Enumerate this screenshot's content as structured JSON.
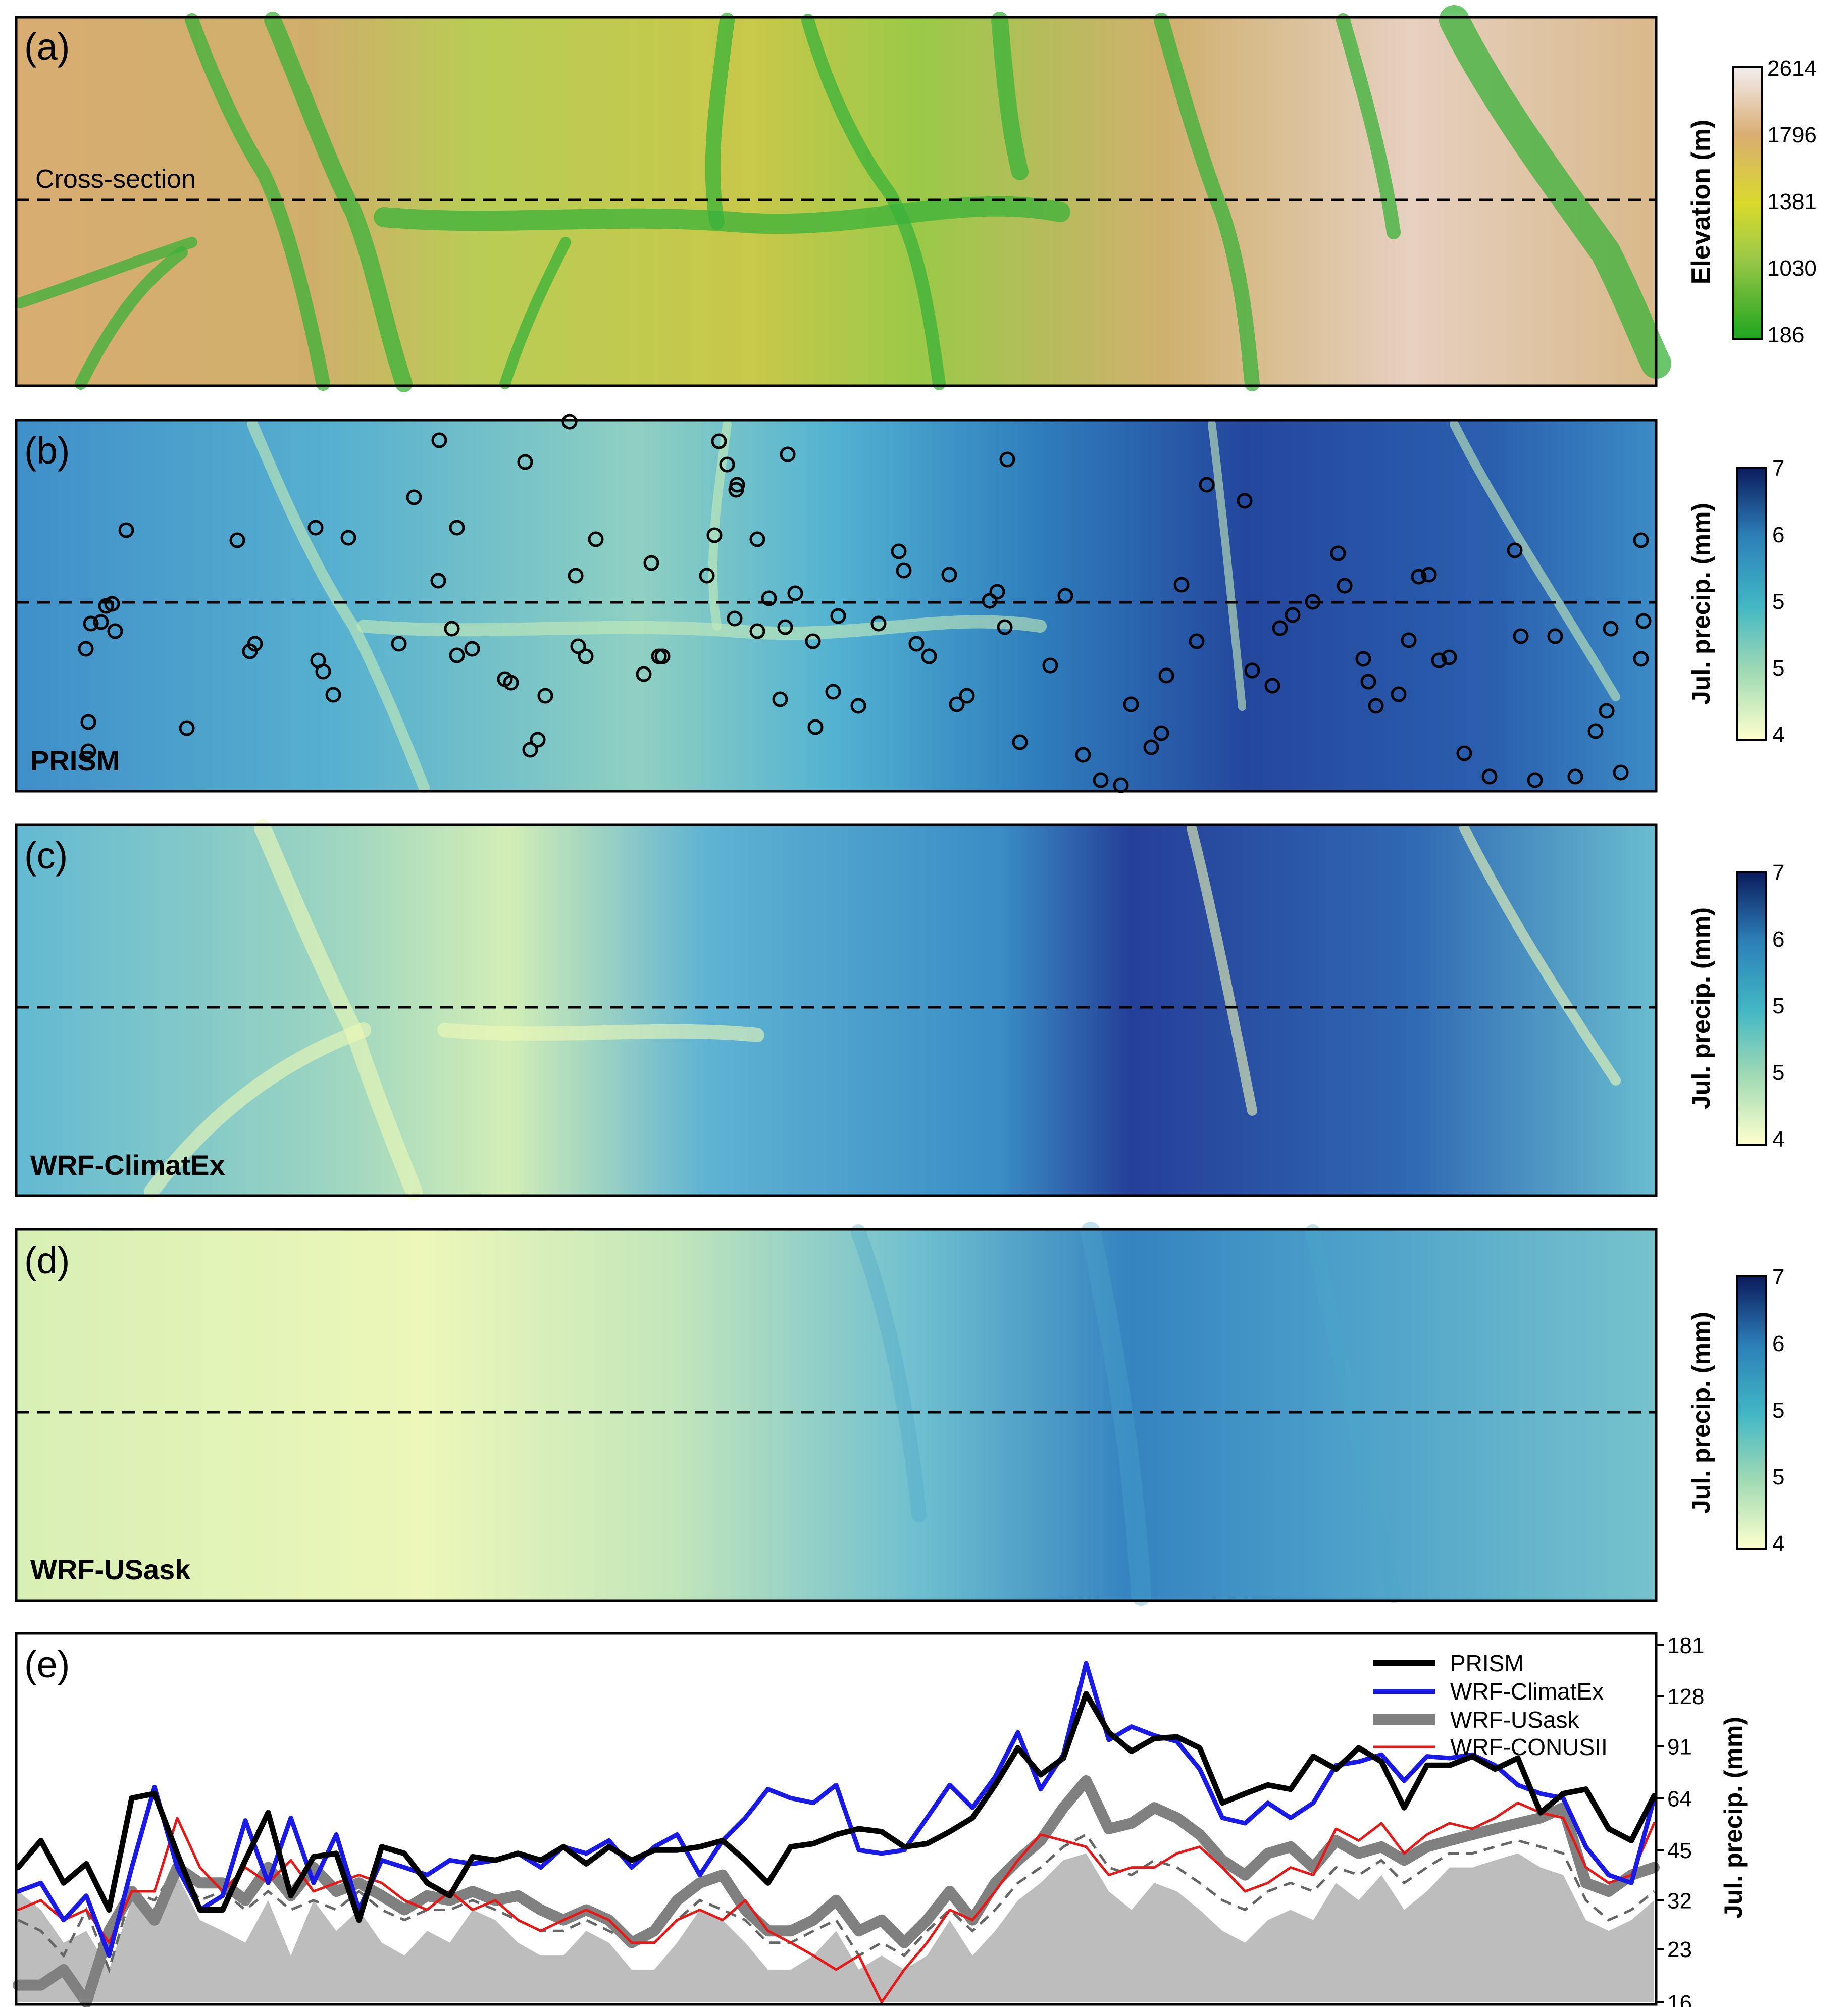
{
  "colors": {
    "terrain": [
      "#1fa51f",
      "#9bc948",
      "#dada2c",
      "#d9ad72",
      "#f4eef0"
    ],
    "precip": [
      "#ffffcc",
      "#a1dab4",
      "#41b6c4",
      "#2c7fb8",
      "#253494",
      "#0b1b5c"
    ],
    "prism_line": "#000000",
    "climatex_line": "#1a1ae6",
    "usask_line": "#808080",
    "conus_line": "#e61919",
    "elevation_fill": "#bdbdbd"
  },
  "panels": [
    {
      "id": "a",
      "label": "(a)",
      "name": "",
      "annotation": "Cross-section"
    },
    {
      "id": "b",
      "label": "(b)",
      "name": "PRISM"
    },
    {
      "id": "c",
      "label": "(c)",
      "name": "WRF-ClimatEx"
    },
    {
      "id": "d",
      "label": "(d)",
      "name": "WRF-USask"
    },
    {
      "id": "e",
      "label": "(e)",
      "name": ""
    }
  ],
  "colorbars": [
    {
      "title": "Elevation (m)",
      "ticks": [
        "2614",
        "1796",
        "1381",
        "1030",
        "186"
      ]
    },
    {
      "title": "Jul. precip. (mm)",
      "ticks": [
        "7",
        "6",
        "5",
        "5",
        "4"
      ]
    },
    {
      "title": "Jul. precip. (mm)",
      "ticks": [
        "7",
        "6",
        "5",
        "5",
        "4"
      ]
    },
    {
      "title": "Jul. precip. (mm)",
      "ticks": [
        "7",
        "6",
        "5",
        "5",
        "4"
      ]
    }
  ],
  "chart_data": {
    "type": "line",
    "ylabel": "Jul. precip. (mm)",
    "ylim": [
      16,
      181
    ],
    "y_scale": "log",
    "y_ticks": [
      181,
      128,
      91,
      64,
      45,
      32,
      23,
      16
    ],
    "legend_position": "top-right",
    "legend": [
      "PRISM",
      "WRF-ClimatEx",
      "WRF-USask",
      "WRF-CONUSII"
    ],
    "series": [
      {
        "name": "PRISM",
        "values": [
          40,
          48,
          36,
          41,
          30,
          64,
          66,
          44,
          30,
          30,
          42,
          58,
          33,
          43,
          44,
          28,
          46,
          44,
          36,
          33,
          43,
          42,
          44,
          42,
          46,
          41,
          46,
          42,
          45,
          45,
          46,
          48,
          42,
          36,
          46,
          47,
          50,
          52,
          51,
          46,
          47,
          51,
          56,
          70,
          90,
          75,
          84,
          130,
          100,
          88,
          96,
          97,
          90,
          62,
          66,
          70,
          68,
          85,
          78,
          90,
          82,
          60,
          80,
          80,
          85,
          78,
          84,
          58,
          66,
          68,
          52,
          48,
          65
        ]
      },
      {
        "name": "WRF-ClimatEx",
        "values": [
          34,
          36,
          28,
          33,
          22,
          40,
          69,
          40,
          30,
          33,
          55,
          36,
          56,
          36,
          50,
          30,
          42,
          40,
          38,
          42,
          41,
          42,
          44,
          40,
          46,
          44,
          48,
          40,
          46,
          50,
          38,
          48,
          56,
          68,
          64,
          62,
          70,
          45,
          44,
          45,
          56,
          70,
          60,
          74,
          100,
          68,
          86,
          160,
          95,
          104,
          98,
          94,
          78,
          56,
          54,
          62,
          56,
          62,
          80,
          82,
          86,
          72,
          85,
          84,
          86,
          80,
          70,
          66,
          64,
          46,
          38,
          36,
          64
        ]
      },
      {
        "name": "WRF-USask",
        "values": [
          18,
          18,
          20,
          16,
          26,
          34,
          28,
          40,
          36,
          36,
          32,
          40,
          33,
          40,
          34,
          36,
          33,
          30,
          33,
          32,
          34,
          32,
          33,
          30,
          28,
          30,
          28,
          24,
          26,
          32,
          36,
          38,
          30,
          26,
          26,
          28,
          32,
          26,
          28,
          24,
          28,
          34,
          28,
          36,
          42,
          48,
          60,
          72,
          52,
          54,
          60,
          56,
          50,
          42,
          38,
          44,
          46,
          40,
          48,
          44,
          46,
          42,
          46,
          48,
          50,
          52,
          54,
          56,
          60,
          36,
          34,
          38,
          40
        ]
      },
      {
        "name": "WRF-CONUSII",
        "values": [
          30,
          32,
          28,
          30,
          24,
          34,
          34,
          56,
          40,
          34,
          40,
          36,
          42,
          34,
          36,
          38,
          36,
          32,
          30,
          34,
          30,
          32,
          28,
          26,
          28,
          30,
          28,
          24,
          24,
          28,
          30,
          28,
          32,
          26,
          24,
          22,
          20,
          22,
          16,
          20,
          24,
          30,
          28,
          34,
          42,
          50,
          48,
          46,
          38,
          40,
          40,
          44,
          46,
          40,
          34,
          36,
          40,
          38,
          52,
          48,
          54,
          44,
          50,
          54,
          52,
          56,
          62,
          58,
          56,
          40,
          36,
          38,
          54
        ]
      },
      {
        "name": "",
        "values": [
          28,
          26,
          22,
          30,
          20,
          34,
          32,
          40,
          32,
          34,
          30,
          34,
          30,
          32,
          30,
          34,
          30,
          28,
          30,
          30,
          32,
          30,
          28,
          26,
          26,
          28,
          26,
          24,
          24,
          28,
          32,
          30,
          28,
          24,
          24,
          26,
          28,
          22,
          24,
          22,
          26,
          30,
          26,
          30,
          36,
          40,
          46,
          50,
          40,
          38,
          42,
          40,
          36,
          32,
          30,
          34,
          36,
          34,
          40,
          38,
          42,
          36,
          40,
          44,
          44,
          46,
          48,
          46,
          44,
          32,
          28,
          30,
          34
        ]
      },
      {
        "name": "",
        "values": [
          34,
          30,
          24,
          26,
          20,
          32,
          30,
          38,
          28,
          26,
          24,
          32,
          22,
          32,
          26,
          30,
          24,
          22,
          26,
          24,
          30,
          28,
          24,
          22,
          22,
          26,
          24,
          20,
          20,
          24,
          30,
          28,
          24,
          20,
          20,
          22,
          26,
          20,
          22,
          20,
          22,
          28,
          22,
          26,
          32,
          36,
          42,
          44,
          34,
          30,
          36,
          34,
          30,
          26,
          24,
          28,
          30,
          28,
          36,
          32,
          38,
          30,
          34,
          40,
          40,
          42,
          44,
          40,
          38,
          28,
          26,
          28,
          32
        ]
      }
    ]
  }
}
